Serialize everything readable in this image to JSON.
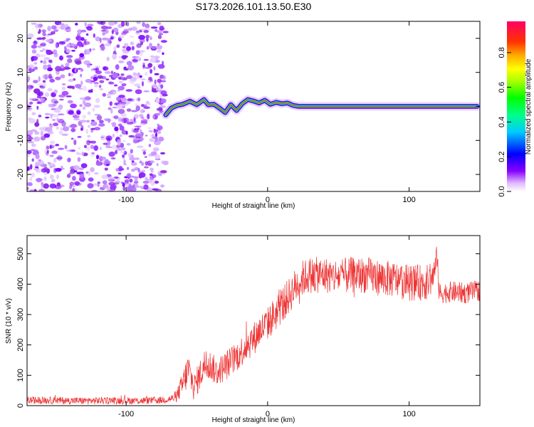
{
  "title": "S173.2026.101.13.50.E30",
  "colors": {
    "snr_line": "#ee3333",
    "frame": "#000000"
  },
  "chart_data": [
    {
      "type": "heatmap",
      "xlabel": "Height of straight line (km)",
      "ylabel": "Frequency (Hz)",
      "xlim": [
        -170,
        150
      ],
      "ylim": [
        -25,
        25
      ],
      "xticks": [
        -100,
        0,
        100
      ],
      "xtick_labels": [
        "-100",
        "0",
        "100"
      ],
      "yticks": [
        -20,
        -10,
        0,
        10,
        20
      ],
      "ytick_labels": [
        "-20",
        "-10",
        "0",
        "10",
        "20"
      ],
      "noise_region_x": [
        -170,
        -72
      ],
      "signal_track": {
        "x": [
          -72,
          -68,
          -64,
          -60,
          -55,
          -50,
          -45,
          -42,
          -38,
          -34,
          -30,
          -26,
          -22,
          -18,
          -14,
          -10,
          -6,
          -2,
          2,
          6,
          10,
          14,
          18,
          22,
          40,
          60,
          80,
          100,
          120,
          148
        ],
        "freq_hz": [
          -2.5,
          -0.5,
          0.3,
          0.6,
          1.5,
          0.5,
          2.0,
          0.5,
          0.6,
          -0.5,
          -1.8,
          0.5,
          -1.2,
          0.8,
          2.0,
          1.6,
          1.0,
          1.8,
          0.6,
          1.2,
          0.8,
          1.0,
          0.3,
          0.0,
          0.0,
          0.0,
          0.0,
          0.0,
          0.0,
          0.0
        ]
      },
      "colorbar": {
        "label": "Normalized spectral amplitude",
        "range": [
          0.0,
          0.98
        ],
        "ticks": [
          0.0,
          0.2,
          0.4,
          0.6,
          0.8
        ],
        "tick_labels": [
          "0.0",
          "0.2",
          "0.4",
          "0.6",
          "0.8"
        ]
      }
    },
    {
      "type": "line",
      "xlabel": "Height of straight line (km)",
      "ylabel": "SNR (10 * v/v)",
      "xlim": [
        -170,
        150
      ],
      "ylim": [
        0,
        560
      ],
      "xticks": [
        -100,
        0,
        100
      ],
      "xtick_labels": [
        "-100",
        "0",
        "100"
      ],
      "yticks": [
        0,
        100,
        200,
        300,
        400,
        500
      ],
      "ytick_labels": [
        "0",
        "100",
        "200",
        "300",
        "400",
        "500"
      ],
      "series": [
        {
          "name": "SNR",
          "x": [
            -170,
            -150,
            -130,
            -110,
            -90,
            -75,
            -65,
            -60,
            -56,
            -52,
            -48,
            -44,
            -40,
            -36,
            -30,
            -25,
            -20,
            -15,
            -10,
            -5,
            0,
            5,
            10,
            15,
            20,
            25,
            30,
            40,
            50,
            60,
            70,
            80,
            90,
            100,
            110,
            115,
            118,
            120,
            121,
            123,
            130,
            140,
            150
          ],
          "y": [
            18,
            17,
            16,
            17,
            16,
            18,
            25,
            70,
            120,
            60,
            100,
            140,
            130,
            110,
            130,
            150,
            170,
            200,
            220,
            250,
            270,
            300,
            330,
            360,
            395,
            420,
            430,
            430,
            425,
            430,
            430,
            420,
            415,
            405,
            405,
            410,
            440,
            500,
            370,
            370,
            375,
            370,
            380
          ],
          "noise_amplitude": [
            12,
            12,
            12,
            12,
            12,
            12,
            15,
            45,
            60,
            45,
            50,
            55,
            50,
            45,
            50,
            50,
            50,
            55,
            55,
            55,
            55,
            60,
            60,
            60,
            60,
            60,
            60,
            60,
            60,
            60,
            60,
            60,
            60,
            60,
            60,
            55,
            50,
            40,
            35,
            35,
            35,
            35,
            35
          ]
        }
      ]
    }
  ]
}
